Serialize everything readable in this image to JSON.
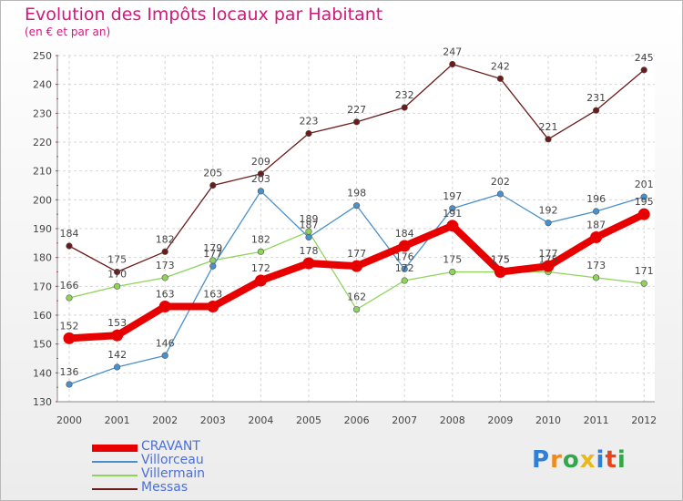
{
  "chart_data": {
    "type": "line",
    "title": "Evolution des Impôts locaux par Habitant",
    "subtitle": "(en € et par an)",
    "xlabel": "",
    "ylabel": "",
    "categories": [
      "2000",
      "2001",
      "2002",
      "2003",
      "2004",
      "2005",
      "2006",
      "2007",
      "2008",
      "2009",
      "2010",
      "2011",
      "2012"
    ],
    "ylim": [
      130,
      250
    ],
    "yticks": [
      130,
      140,
      150,
      160,
      170,
      180,
      190,
      200,
      210,
      220,
      230,
      240,
      250
    ],
    "grid": true,
    "legend_position": "bottom-left",
    "series": [
      {
        "name": "CRAVANT",
        "color": "#e80000",
        "values": [
          152,
          153,
          163,
          163,
          172,
          178,
          177,
          184,
          191,
          175,
          177,
          187,
          195
        ]
      },
      {
        "name": "Villorceau",
        "color": "#4a90cc",
        "values": [
          136,
          142,
          146,
          177,
          203,
          187,
          198,
          176,
          197,
          202,
          192,
          196,
          201
        ]
      },
      {
        "name": "Villermain",
        "color": "#8fd45a",
        "values": [
          166,
          170,
          173,
          179,
          182,
          189,
          162,
          172,
          175,
          175,
          175,
          173,
          171
        ]
      },
      {
        "name": "Messas",
        "color": "#6b1a1a",
        "values": [
          184,
          175,
          182,
          205,
          209,
          223,
          227,
          232,
          247,
          242,
          221,
          231,
          245
        ]
      }
    ]
  },
  "logo": {
    "text": "Proxiti"
  }
}
